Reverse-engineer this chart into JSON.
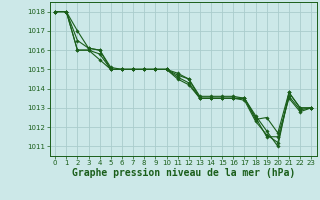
{
  "background_color": "#cce8e8",
  "grid_color": "#aacccc",
  "line_color": "#1a5e1a",
  "marker_color": "#1a5e1a",
  "xlabel": "Graphe pression niveau de la mer (hPa)",
  "xlabel_fontsize": 7,
  "ylim": [
    1010.5,
    1018.5
  ],
  "xlim": [
    -0.5,
    23.5
  ],
  "yticks": [
    1011,
    1012,
    1013,
    1014,
    1015,
    1016,
    1017,
    1018
  ],
  "xticks": [
    0,
    1,
    2,
    3,
    4,
    5,
    6,
    7,
    8,
    9,
    10,
    11,
    12,
    13,
    14,
    15,
    16,
    17,
    18,
    19,
    20,
    21,
    22,
    23
  ],
  "tick_fontsize": 5,
  "series": [
    [
      1018,
      1018,
      1017,
      1016.1,
      1016,
      1015,
      1015,
      1015,
      1015,
      1015,
      1015,
      1014.7,
      1014.5,
      1013.6,
      1013.6,
      1013.6,
      1013.6,
      1013.5,
      1012.6,
      1011.8,
      1011.0,
      1013.8,
      1013.0,
      1013.0
    ],
    [
      1018,
      1018,
      1016,
      1016,
      1015.8,
      1015,
      1015,
      1015,
      1015,
      1015,
      1015,
      1014.5,
      1014.2,
      1013.5,
      1013.5,
      1013.5,
      1013.5,
      1013.5,
      1012.4,
      1012.5,
      1011.7,
      1013.8,
      1013.0,
      1013.0
    ],
    [
      1018,
      1018,
      1016,
      1016,
      1015.5,
      1015,
      1015,
      1015,
      1015,
      1015,
      1015,
      1014.8,
      1014.5,
      1013.5,
      1013.5,
      1013.5,
      1013.5,
      1013.5,
      1012.5,
      1011.5,
      1011.5,
      1013.5,
      1012.8,
      1013.0
    ],
    [
      1018,
      1018,
      1016.5,
      1016.1,
      1016,
      1015.1,
      1015,
      1015,
      1015,
      1015,
      1015,
      1014.6,
      1014.3,
      1013.5,
      1013.5,
      1013.5,
      1013.5,
      1013.4,
      1012.3,
      1011.6,
      1011.2,
      1013.6,
      1012.9,
      1013.0
    ]
  ]
}
